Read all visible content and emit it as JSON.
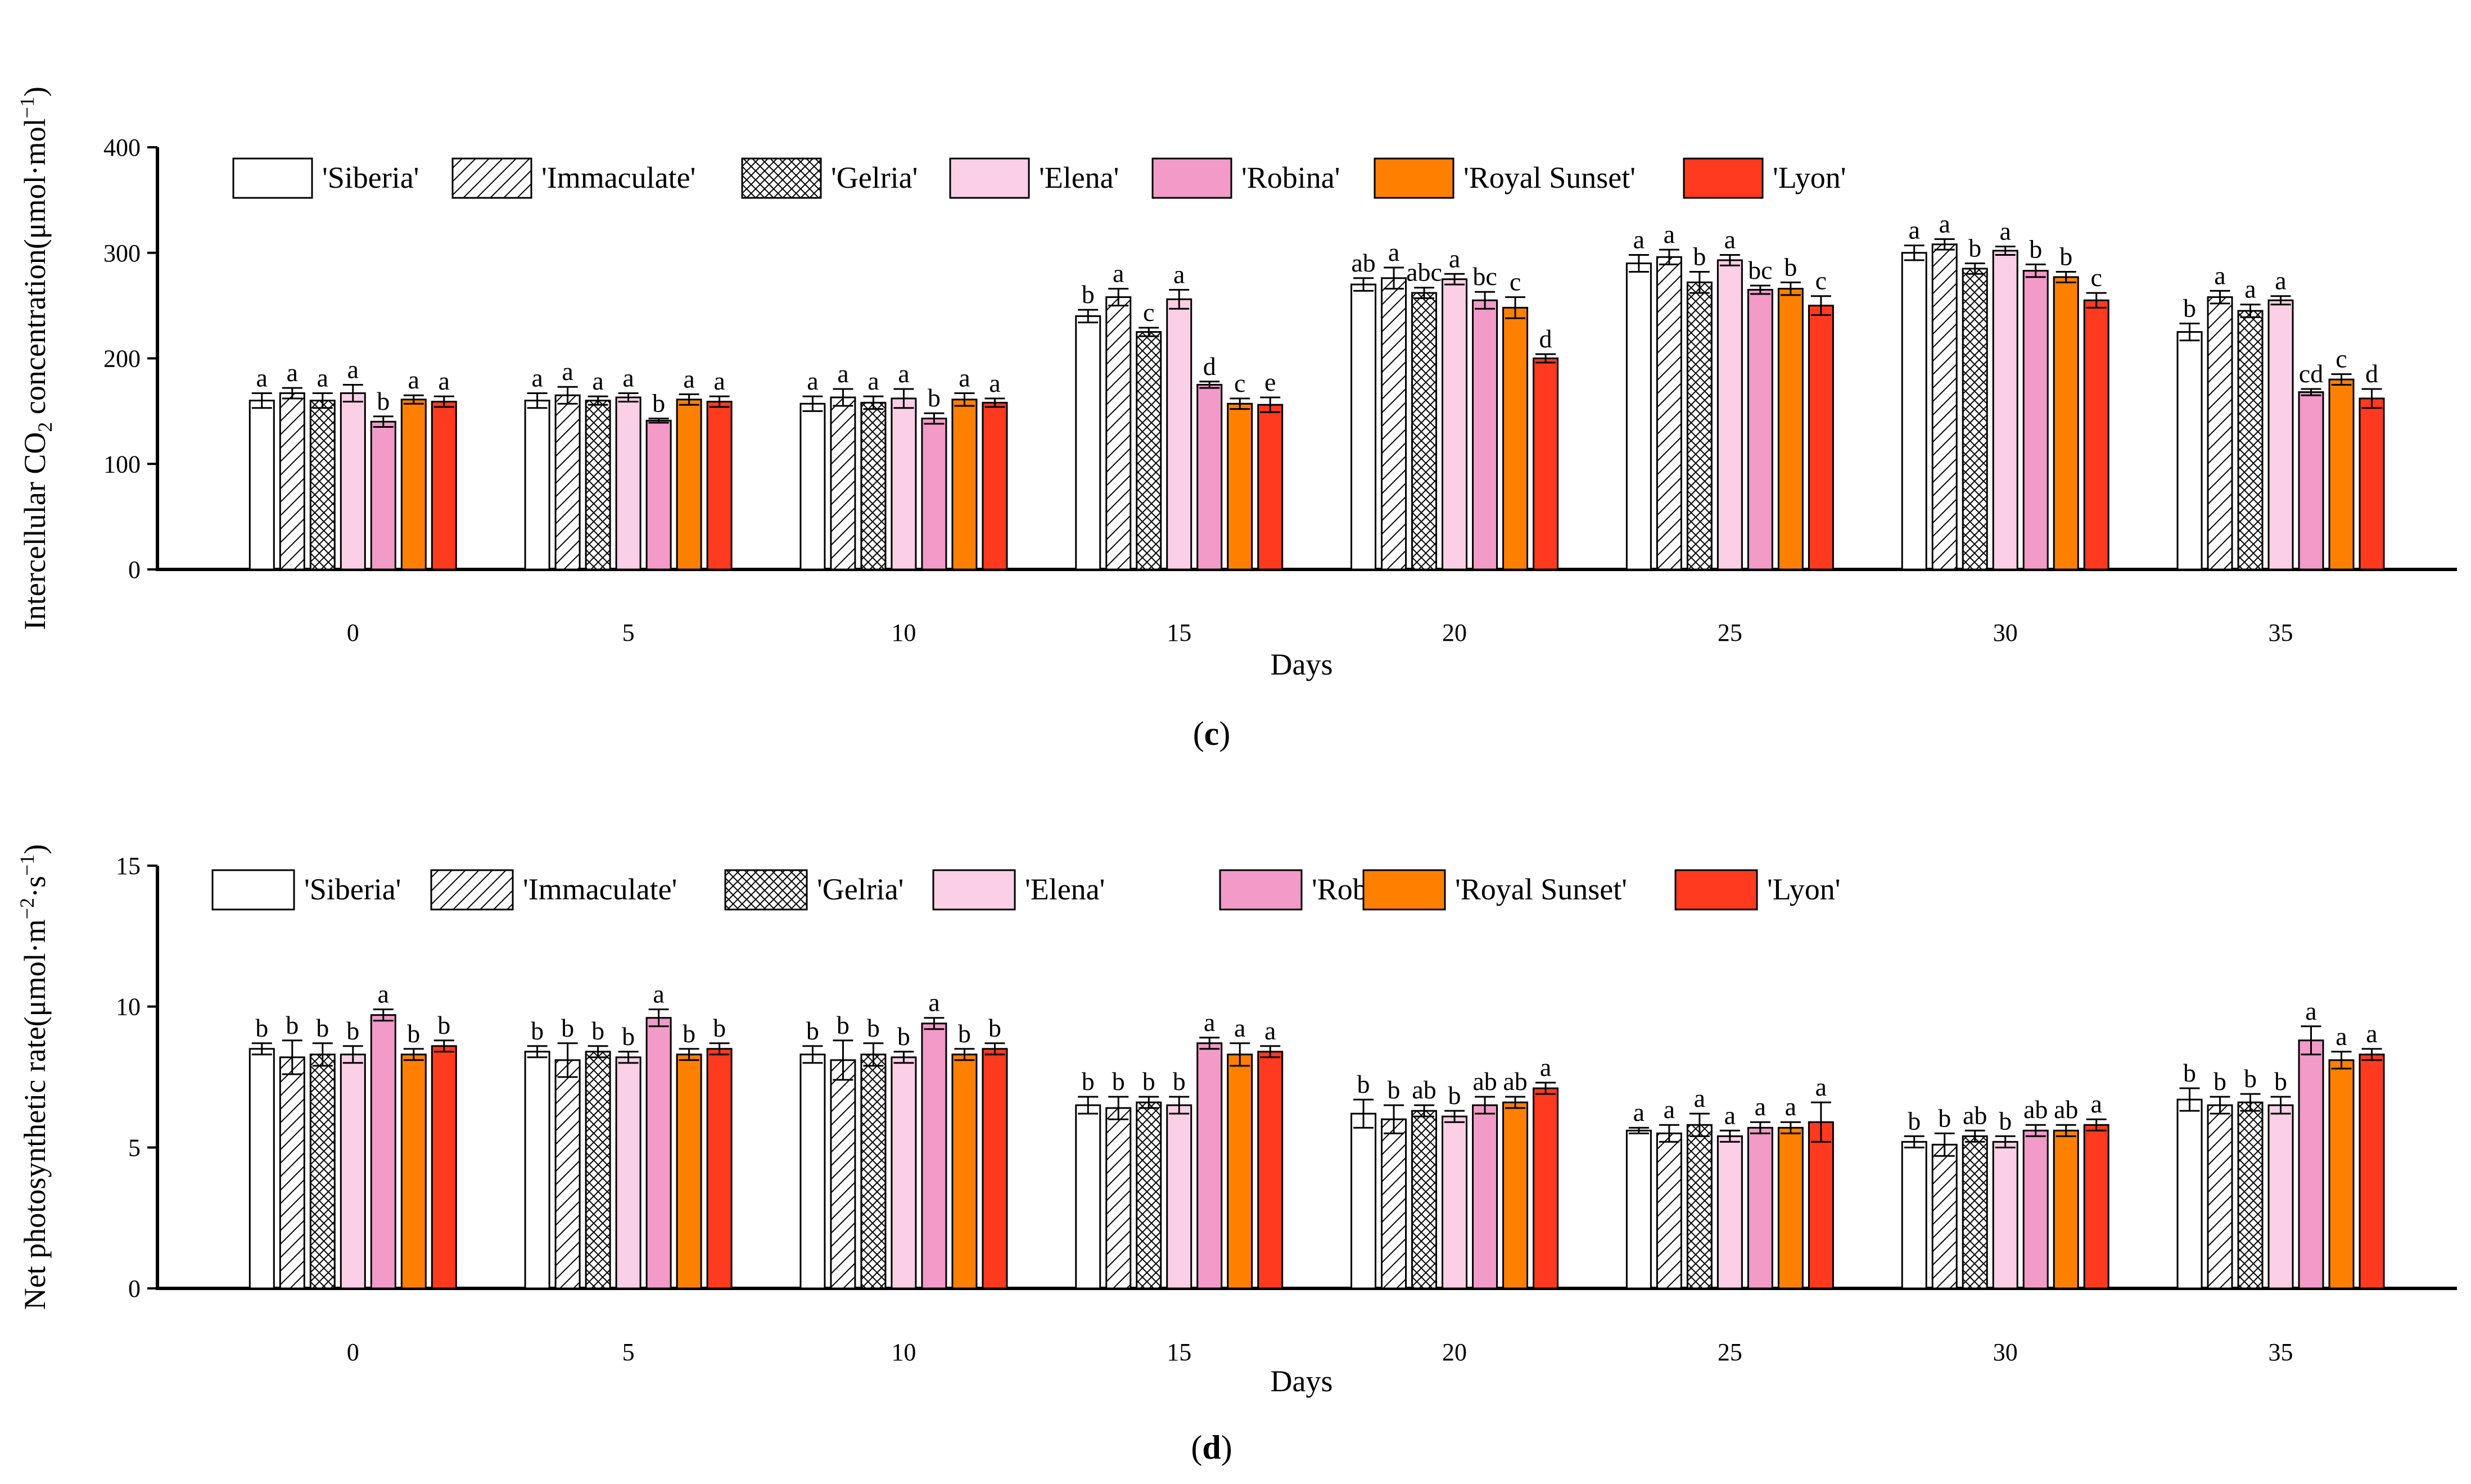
{
  "chart_data": [
    {
      "type": "bar",
      "panel_label": "(c)",
      "panel_letter": "c",
      "title": "",
      "xlabel": "Days",
      "ylabel_parts": [
        "Intercellular CO",
        "2",
        " concentration(μmol·mol",
        "−1",
        ")"
      ],
      "ylim": [
        0,
        400
      ],
      "yticks": [
        0,
        100,
        200,
        300,
        400
      ],
      "grid": false,
      "legend_position": "top",
      "categories": [
        "0",
        "5",
        "10",
        "15",
        "20",
        "25",
        "30",
        "35"
      ],
      "series": [
        {
          "name": "'Siberia'",
          "values": [
            160,
            160,
            157,
            240,
            270,
            290,
            300,
            225
          ],
          "errors": [
            7,
            7,
            7,
            6,
            6,
            8,
            7,
            8
          ],
          "letters": [
            "a",
            "a",
            "a",
            "b",
            "ab",
            "a",
            "a",
            "b"
          ]
        },
        {
          "name": "'Immaculate'",
          "values": [
            167,
            165,
            163,
            258,
            276,
            296,
            308,
            258
          ],
          "errors": [
            5,
            8,
            8,
            8,
            10,
            7,
            5,
            6
          ],
          "letters": [
            "a",
            "a",
            "a",
            "a",
            "a",
            "a",
            "a",
            "a"
          ]
        },
        {
          "name": "'Gelria'",
          "values": [
            160,
            160,
            158,
            225,
            262,
            272,
            285,
            245
          ],
          "errors": [
            7,
            4,
            6,
            4,
            5,
            10,
            5,
            6
          ],
          "letters": [
            "a",
            "a",
            "a",
            "c",
            "abc",
            "b",
            "b",
            "a"
          ]
        },
        {
          "name": "'Elena'",
          "values": [
            167,
            163,
            162,
            256,
            275,
            293,
            302,
            255
          ],
          "errors": [
            8,
            4,
            9,
            9,
            5,
            5,
            4,
            4
          ],
          "letters": [
            "a",
            "a",
            "a",
            "a",
            "a",
            "a",
            "a",
            "a"
          ]
        },
        {
          "name": "'Robina'",
          "values": [
            140,
            141,
            143,
            175,
            255,
            265,
            283,
            168
          ],
          "errors": [
            5,
            2,
            5,
            3,
            8,
            4,
            6,
            3
          ],
          "letters": [
            "b",
            "b",
            "b",
            "d",
            "bc",
            "bc",
            "b",
            "cd"
          ]
        },
        {
          "name": "'Royal Sunset'",
          "values": [
            161,
            161,
            161,
            157,
            248,
            266,
            277,
            180
          ],
          "errors": [
            4,
            5,
            6,
            5,
            10,
            6,
            5,
            5
          ],
          "letters": [
            "a",
            "a",
            "a",
            "c",
            "c",
            "b",
            "b",
            "c"
          ]
        },
        {
          "name": "'Lyon'",
          "values": [
            159,
            159,
            158,
            156,
            200,
            250,
            255,
            162
          ],
          "errors": [
            5,
            5,
            4,
            7,
            4,
            9,
            7,
            9
          ],
          "letters": [
            "a",
            "a",
            "a",
            "e",
            "d",
            "c",
            "c",
            "d"
          ]
        }
      ]
    },
    {
      "type": "bar",
      "panel_label": "(d)",
      "panel_letter": "d",
      "title": "",
      "xlabel": "Days",
      "ylabel_parts": [
        "Net photosynthetic rate(μmol·m",
        "−2",
        "·s",
        "−1",
        ")"
      ],
      "ylim": [
        0,
        15
      ],
      "yticks": [
        0,
        5,
        10,
        15
      ],
      "grid": false,
      "legend_position": "top",
      "categories": [
        "0",
        "5",
        "10",
        "15",
        "20",
        "25",
        "30",
        "35"
      ],
      "series": [
        {
          "name": "'Siberia'",
          "values": [
            8.5,
            8.4,
            8.3,
            6.5,
            6.2,
            5.6,
            5.2,
            6.7
          ],
          "errors": [
            0.2,
            0.2,
            0.3,
            0.3,
            0.5,
            0.1,
            0.2,
            0.4
          ],
          "letters": [
            "b",
            "b",
            "b",
            "b",
            "b",
            "a",
            "b",
            "b"
          ]
        },
        {
          "name": "'Immaculate'",
          "values": [
            8.2,
            8.1,
            8.1,
            6.4,
            6.0,
            5.5,
            5.1,
            6.5
          ],
          "errors": [
            0.6,
            0.6,
            0.7,
            0.4,
            0.5,
            0.3,
            0.4,
            0.3
          ],
          "letters": [
            "b",
            "b",
            "b",
            "b",
            "b",
            "a",
            "b",
            "b"
          ]
        },
        {
          "name": "'Gelria'",
          "values": [
            8.3,
            8.4,
            8.3,
            6.6,
            6.3,
            5.8,
            5.4,
            6.6
          ],
          "errors": [
            0.4,
            0.2,
            0.4,
            0.2,
            0.2,
            0.4,
            0.2,
            0.3
          ],
          "letters": [
            "b",
            "b",
            "b",
            "b",
            "ab",
            "a",
            "ab",
            "b"
          ]
        },
        {
          "name": "'Elena'",
          "values": [
            8.3,
            8.2,
            8.2,
            6.5,
            6.1,
            5.4,
            5.2,
            6.5
          ],
          "errors": [
            0.3,
            0.2,
            0.2,
            0.3,
            0.2,
            0.2,
            0.2,
            0.3
          ],
          "letters": [
            "b",
            "b",
            "b",
            "b",
            "b",
            "a",
            "b",
            "b"
          ]
        },
        {
          "name": "'Robina'",
          "values": [
            9.7,
            9.6,
            9.4,
            8.7,
            6.5,
            5.7,
            5.6,
            8.8
          ],
          "errors": [
            0.2,
            0.3,
            0.2,
            0.2,
            0.3,
            0.2,
            0.2,
            0.5
          ],
          "letters": [
            "a",
            "a",
            "a",
            "a",
            "ab",
            "a",
            "ab",
            "a"
          ]
        },
        {
          "name": "'Royal Sunset'",
          "values": [
            8.3,
            8.3,
            8.3,
            8.3,
            6.6,
            5.7,
            5.6,
            8.1
          ],
          "errors": [
            0.2,
            0.2,
            0.2,
            0.4,
            0.2,
            0.2,
            0.2,
            0.3
          ],
          "letters": [
            "b",
            "b",
            "b",
            "a",
            "ab",
            "a",
            "ab",
            "a"
          ]
        },
        {
          "name": "'Lyon'",
          "values": [
            8.6,
            8.5,
            8.5,
            8.4,
            7.1,
            5.9,
            5.8,
            8.3
          ],
          "errors": [
            0.2,
            0.2,
            0.2,
            0.2,
            0.2,
            0.7,
            0.2,
            0.2
          ],
          "letters": [
            "b",
            "b",
            "b",
            "a",
            "a",
            "a",
            "a",
            "a"
          ]
        }
      ]
    }
  ],
  "legend_styles": [
    {
      "fill": "#ffffff",
      "pattern": "none"
    },
    {
      "fill": "#ffffff",
      "pattern": "diag"
    },
    {
      "fill": "#ffffff",
      "pattern": "cross"
    },
    {
      "fill": "#fbcfe6",
      "pattern": "none"
    },
    {
      "fill": "#f29ac8",
      "pattern": "none"
    },
    {
      "fill": "#ff8000",
      "pattern": "none"
    },
    {
      "fill": "#ff3a1e",
      "pattern": "none"
    }
  ]
}
